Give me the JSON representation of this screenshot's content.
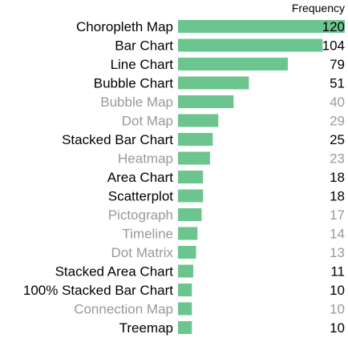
{
  "chart_data": {
    "type": "bar",
    "orientation": "horizontal",
    "value_header": "Frequency",
    "bar_color": "#6cc58f",
    "text_colors": {
      "emphasized": "#000000",
      "muted": "#999999"
    },
    "categories": [
      "Choropleth Map",
      "Bar Chart",
      "Line Chart",
      "Bubble Chart",
      "Bubble Map",
      "Dot Map",
      "Stacked Bar Chart",
      "Heatmap",
      "Area Chart",
      "Scatterplot",
      "Pictograph",
      "Timeline",
      "Dot Matrix",
      "Stacked Area Chart",
      "100% Stacked Bar Chart",
      "Connection Map",
      "Treemap"
    ],
    "values": [
      120,
      104,
      79,
      51,
      40,
      29,
      25,
      23,
      18,
      18,
      17,
      14,
      13,
      11,
      10,
      10,
      10
    ],
    "emphasized": [
      true,
      true,
      true,
      true,
      false,
      false,
      true,
      false,
      true,
      true,
      false,
      false,
      false,
      true,
      true,
      false,
      true
    ],
    "xlim": [
      0,
      120
    ],
    "grid": false,
    "legend": "none"
  }
}
